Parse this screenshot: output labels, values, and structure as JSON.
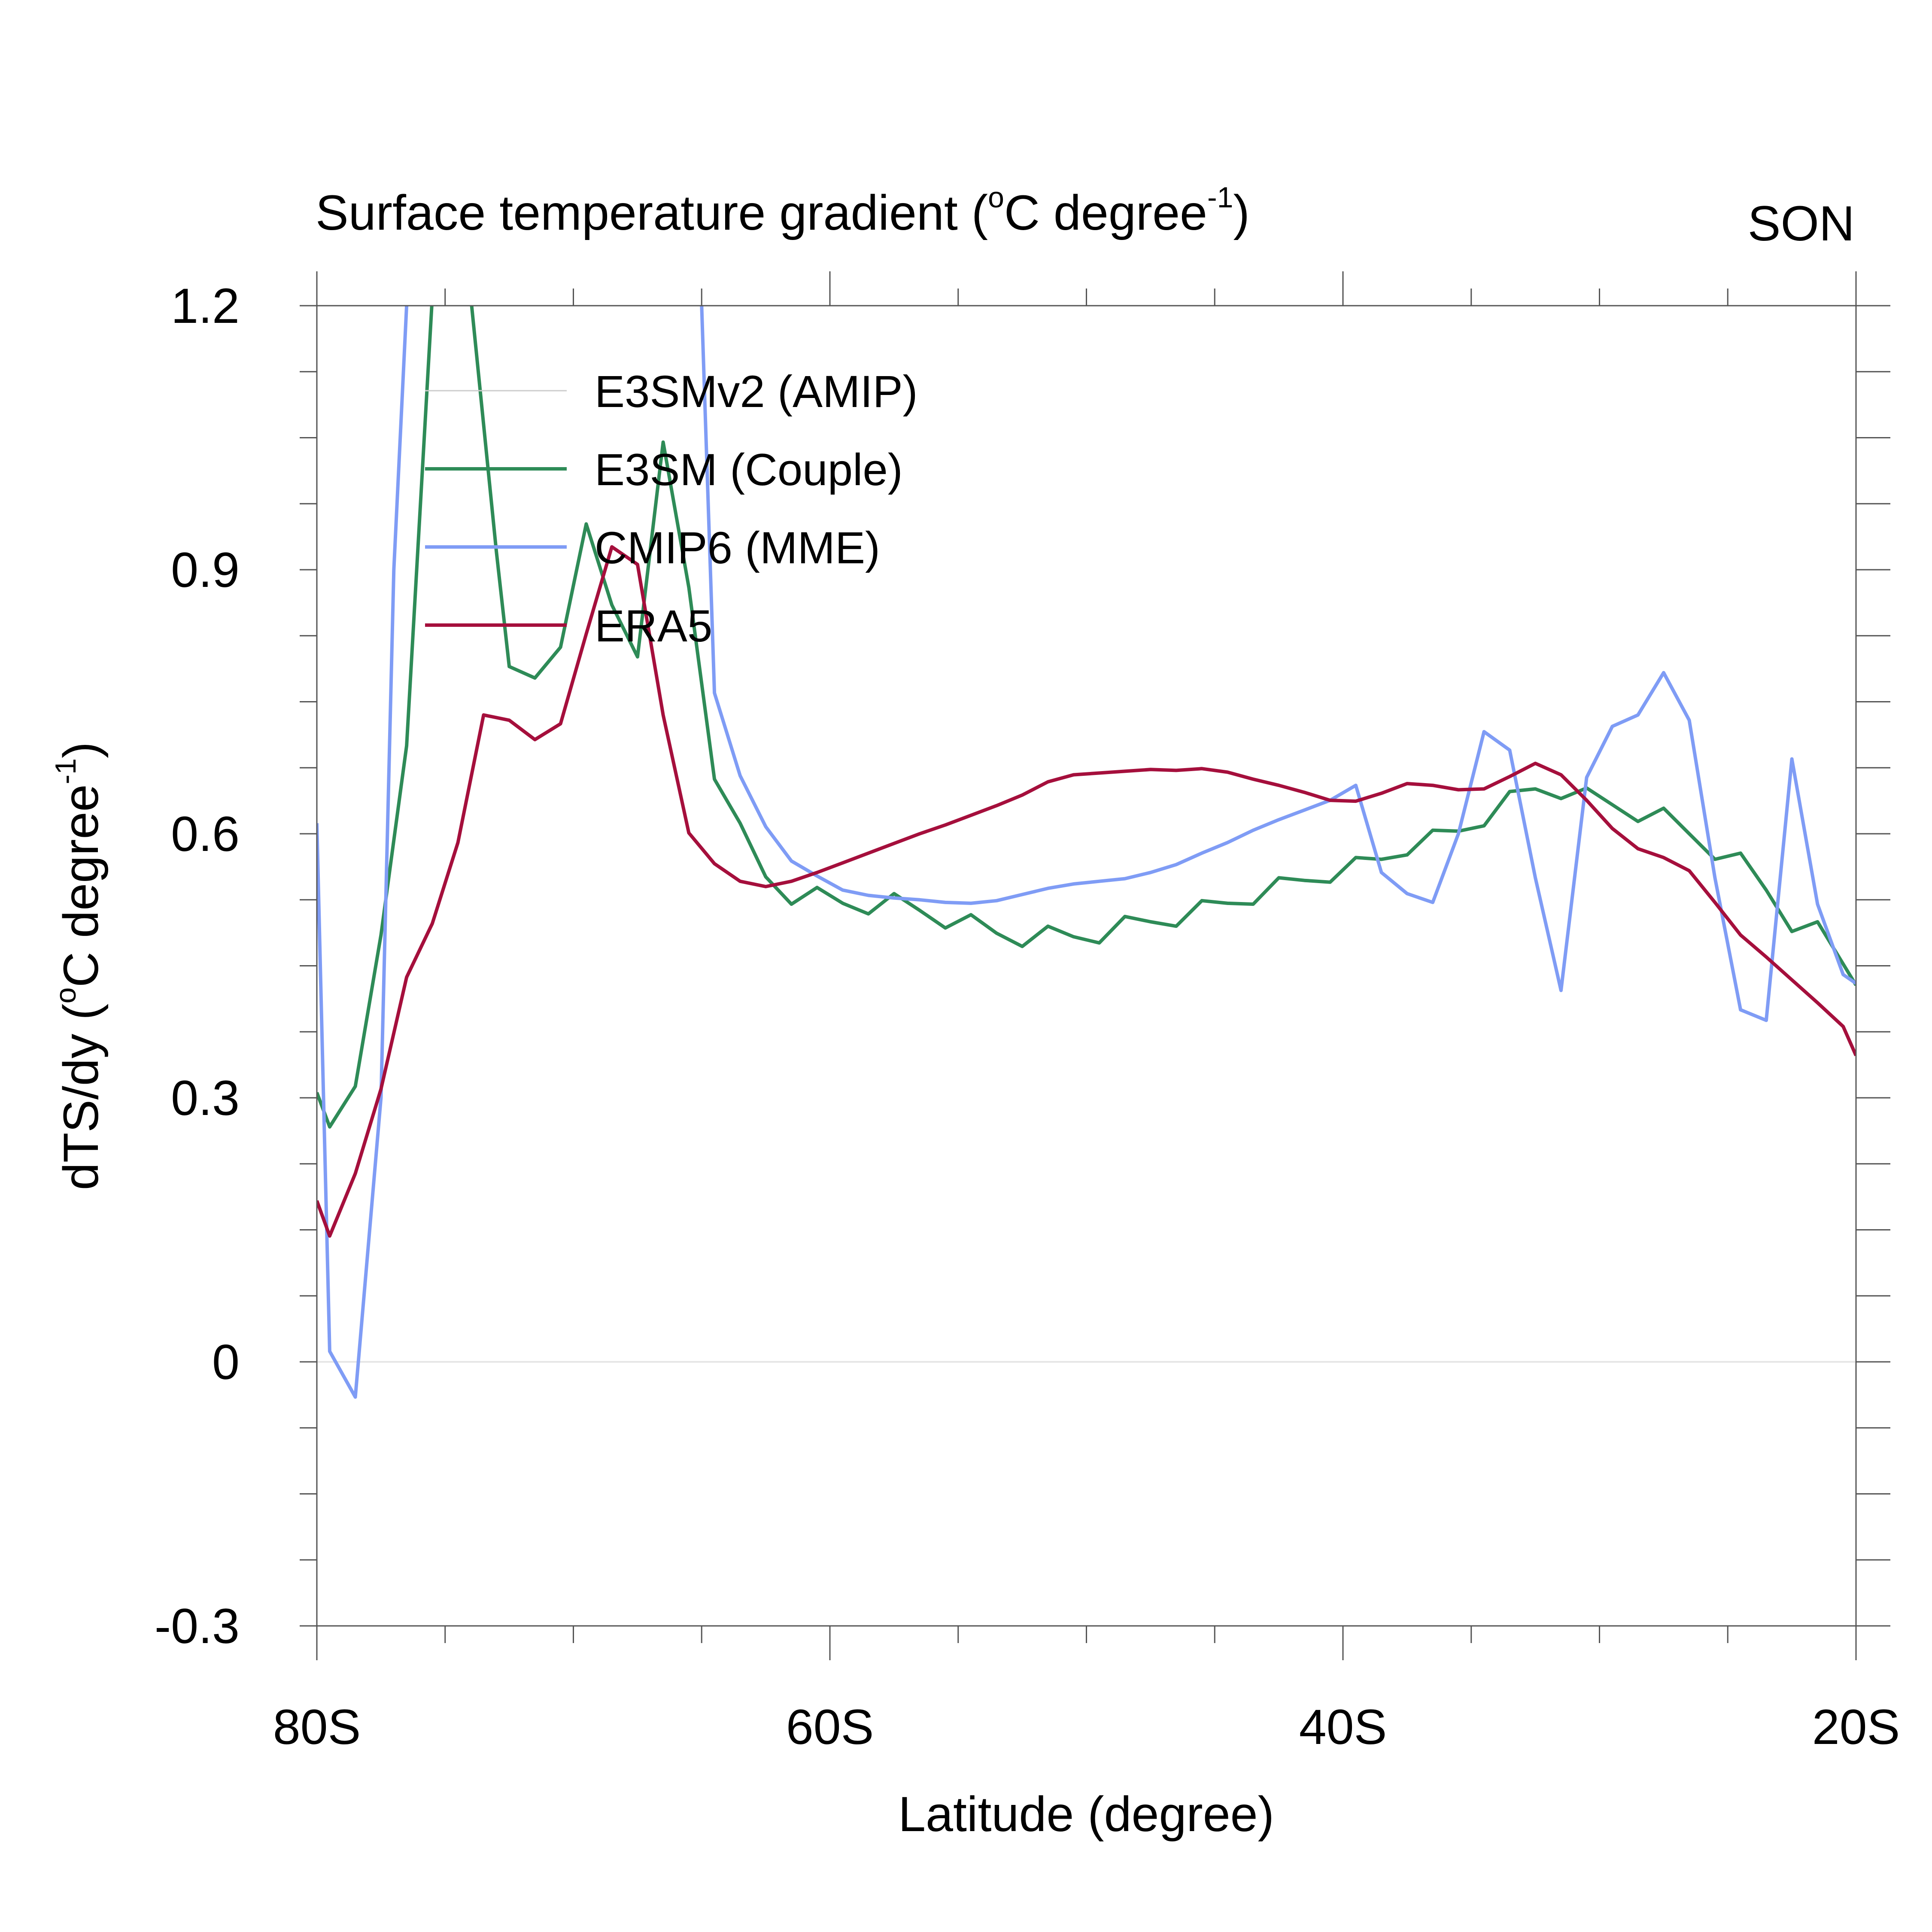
{
  "chart_data": {
    "type": "line",
    "title": "Surface temperature gradient (°C degree⁻¹)",
    "title_main": "Surface temperature gradient (",
    "title_sup1": "o",
    "title_mid": "C degree",
    "title_sup2": "-1",
    "title_end": ")",
    "season": "SON",
    "xlabel": "Latitude (degree)",
    "ylabel": "dTS/dy (°C degree⁻¹)",
    "ylabel_main": "dTS/dy (",
    "ylabel_sup1": "o",
    "ylabel_mid": "C degree",
    "ylabel_sup2": "-1",
    "ylabel_end": ")",
    "xlim": [
      -80,
      -20
    ],
    "ylim": [
      -0.3,
      1.2
    ],
    "x_ticks": [
      {
        "value": -80,
        "label": "80S"
      },
      {
        "value": -60,
        "label": "60S"
      },
      {
        "value": -40,
        "label": "40S"
      },
      {
        "value": -20,
        "label": "20S"
      }
    ],
    "y_ticks": [
      {
        "value": -0.3,
        "label": "-0.3"
      },
      {
        "value": 0,
        "label": "0"
      },
      {
        "value": 0.3,
        "label": "0.3"
      },
      {
        "value": 0.6,
        "label": "0.6"
      },
      {
        "value": 0.9,
        "label": "0.9"
      },
      {
        "value": 1.2,
        "label": "1.2"
      }
    ],
    "zero_line": true,
    "legend_position": "top-left",
    "series": [
      {
        "name": "E3SMv2 (AMIP)",
        "color": "#cccccc",
        "x": [],
        "y": []
      },
      {
        "name": "E3SM (Couple)",
        "color": "#2e8b57",
        "x": [
          -80,
          -79.5,
          -78.5,
          -77.5,
          -76.5,
          -75.5,
          -74.5,
          -74,
          -73,
          -72.5,
          -71.5,
          -70.5,
          -69.5,
          -68.5,
          -67.5,
          -66.5,
          -65.5,
          -64.5,
          -63.5,
          -62.5,
          -61.5,
          -60.5,
          -59.5,
          -58.5,
          -57.5,
          -56.5,
          -55.5,
          -54.5,
          -53.5,
          -52.5,
          -51.5,
          -50.5,
          -49.5,
          -48.5,
          -47.5,
          -46.5,
          -45.5,
          -44.5,
          -43.5,
          -42.5,
          -41.5,
          -40.5,
          -39.5,
          -38.5,
          -37.5,
          -36.5,
          -35.5,
          -34.5,
          -33.5,
          -32.5,
          -31.5,
          -30.5,
          -29.5,
          -28.5,
          -27.5,
          -26.5,
          -25.5,
          -24.5,
          -23.5,
          -22.5,
          -21.5,
          -20
        ],
        "y": [
          0.306,
          0.267,
          0.313,
          0.485,
          0.7,
          1.21,
          1.25,
          1.21,
          0.92,
          0.79,
          0.777,
          0.812,
          0.952,
          0.86,
          0.801,
          1.045,
          0.88,
          0.662,
          0.612,
          0.551,
          0.52,
          0.539,
          0.521,
          0.509,
          0.532,
          0.513,
          0.493,
          0.508,
          0.487,
          0.472,
          0.495,
          0.483,
          0.476,
          0.506,
          0.5,
          0.495,
          0.524,
          0.521,
          0.52,
          0.55,
          0.547,
          0.545,
          0.573,
          0.571,
          0.576,
          0.604,
          0.603,
          0.609,
          0.648,
          0.651,
          0.64,
          0.652,
          0.633,
          0.614,
          0.629,
          0.6,
          0.571,
          0.578,
          0.536,
          0.489,
          0.5,
          0.428
        ]
      },
      {
        "name": "CMIP6 (MME)",
        "color": "#7f9cf5",
        "x": [
          -80,
          -79.5,
          -78.5,
          -77.5,
          -77,
          -76.5,
          -75.5,
          -74.5,
          -66,
          -65,
          -64.5,
          -63.5,
          -62.5,
          -61.5,
          -60.5,
          -59.5,
          -58.5,
          -57.5,
          -56.5,
          -55.5,
          -54.5,
          -53.5,
          -52.5,
          -51.5,
          -50.5,
          -49.5,
          -48.5,
          -47.5,
          -46.5,
          -45.5,
          -44.5,
          -43.5,
          -42.5,
          -41.5,
          -40.5,
          -39.5,
          -38.5,
          -37.5,
          -36.5,
          -35.5,
          -34.5,
          -33.5,
          -32.5,
          -31.5,
          -30.5,
          -29.5,
          -28.5,
          -27.5,
          -26.5,
          -25.5,
          -24.5,
          -23.5,
          -22.5,
          -21.5,
          -20.5,
          -20
        ],
        "y": [
          0.612,
          0.012,
          -0.04,
          0.3,
          0.9,
          1.2,
          1.25,
          1.25,
          1.25,
          1.2,
          0.76,
          0.666,
          0.608,
          0.569,
          0.552,
          0.536,
          0.53,
          0.527,
          0.525,
          0.522,
          0.521,
          0.524,
          0.531,
          0.538,
          0.543,
          0.546,
          0.549,
          0.556,
          0.565,
          0.578,
          0.59,
          0.604,
          0.616,
          0.627,
          0.638,
          0.655,
          0.556,
          0.532,
          0.522,
          0.6,
          0.716,
          0.695,
          0.55,
          0.422,
          0.664,
          0.722,
          0.735,
          0.783,
          0.729,
          0.55,
          0.4,
          0.388,
          0.685,
          0.52,
          0.44,
          0.43
        ]
      },
      {
        "name": "ERA5",
        "color": "#a50f3c",
        "x": [
          -80,
          -79.5,
          -78.5,
          -77.5,
          -76.5,
          -75.5,
          -74.5,
          -73.5,
          -72.5,
          -71.5,
          -70.5,
          -69.5,
          -68.5,
          -67.5,
          -66.5,
          -65.5,
          -64.5,
          -63.5,
          -62.5,
          -61.5,
          -60.5,
          -59.5,
          -58.5,
          -57.5,
          -56.5,
          -55.5,
          -54.5,
          -53.5,
          -52.5,
          -51.5,
          -50.5,
          -49.5,
          -48.5,
          -47.5,
          -46.5,
          -45.5,
          -44.5,
          -43.5,
          -42.5,
          -41.5,
          -40.5,
          -39.5,
          -38.5,
          -37.5,
          -36.5,
          -35.5,
          -34.5,
          -33.5,
          -32.5,
          -31.5,
          -30.5,
          -29.5,
          -28.5,
          -27.5,
          -26.5,
          -25.5,
          -24.5,
          -23.5,
          -22.5,
          -21.5,
          -20.5,
          -20
        ],
        "y": [
          0.183,
          0.143,
          0.214,
          0.31,
          0.437,
          0.498,
          0.59,
          0.735,
          0.729,
          0.707,
          0.725,
          0.827,
          0.926,
          0.906,
          0.735,
          0.601,
          0.566,
          0.546,
          0.54,
          0.546,
          0.556,
          0.567,
          0.578,
          0.589,
          0.6,
          0.61,
          0.621,
          0.632,
          0.644,
          0.659,
          0.667,
          0.669,
          0.671,
          0.673,
          0.672,
          0.674,
          0.67,
          0.662,
          0.655,
          0.647,
          0.638,
          0.637,
          0.646,
          0.657,
          0.655,
          0.65,
          0.651,
          0.665,
          0.68,
          0.667,
          0.638,
          0.606,
          0.583,
          0.573,
          0.558,
          0.522,
          0.485,
          0.46,
          0.434,
          0.408,
          0.381,
          0.348
        ]
      }
    ]
  }
}
